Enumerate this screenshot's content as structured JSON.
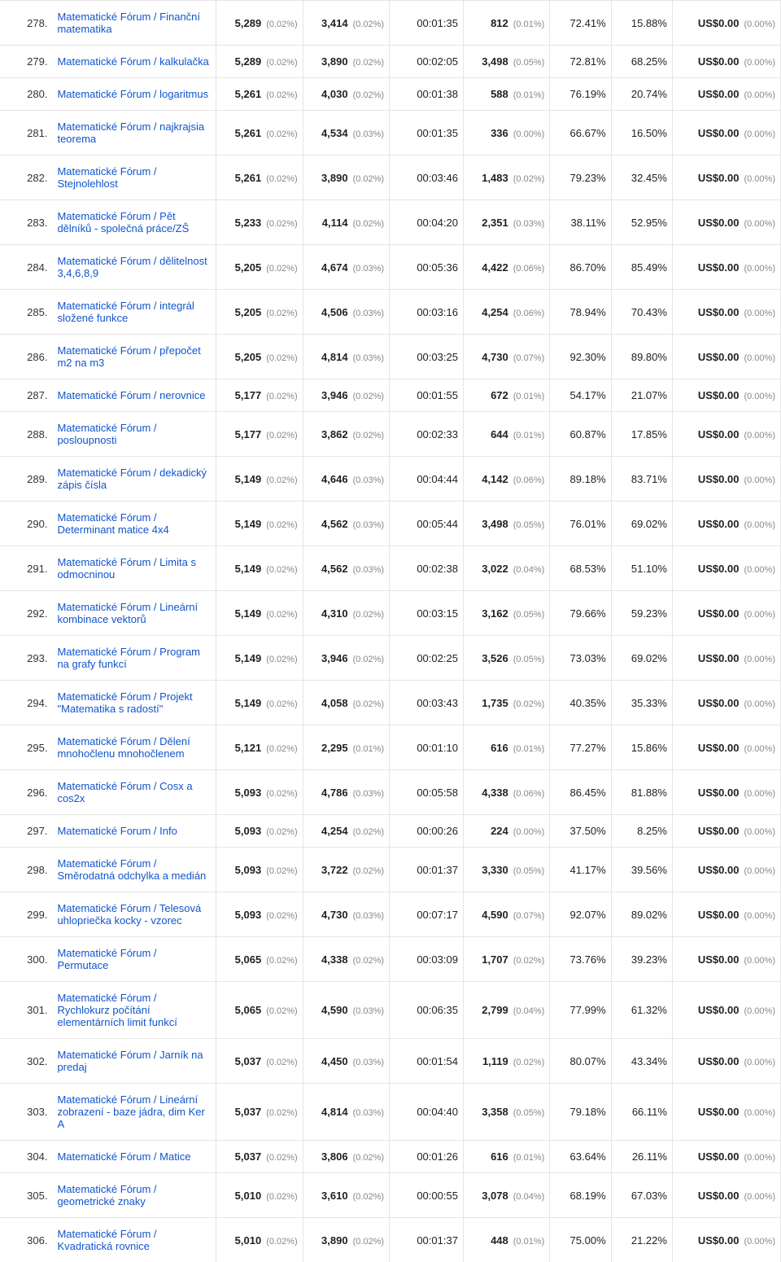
{
  "rows": [
    {
      "idx": "278.",
      "title": "Matematické Fórum / Finanční matematika",
      "c1": "5,289",
      "c1p": "(0.02%)",
      "c2": "3,414",
      "c2p": "(0.02%)",
      "time": "00:01:35",
      "c4": "812",
      "c4p": "(0.01%)",
      "p1": "72.41%",
      "p2": "15.88%",
      "rev": "US$0.00",
      "revp": "(0.00%)"
    },
    {
      "idx": "279.",
      "title": "Matematické Fórum / kalkulačka",
      "c1": "5,289",
      "c1p": "(0.02%)",
      "c2": "3,890",
      "c2p": "(0.02%)",
      "time": "00:02:05",
      "c4": "3,498",
      "c4p": "(0.05%)",
      "p1": "72.81%",
      "p2": "68.25%",
      "rev": "US$0.00",
      "revp": "(0.00%)"
    },
    {
      "idx": "280.",
      "title": "Matematické Fórum / logaritmus",
      "c1": "5,261",
      "c1p": "(0.02%)",
      "c2": "4,030",
      "c2p": "(0.02%)",
      "time": "00:01:38",
      "c4": "588",
      "c4p": "(0.01%)",
      "p1": "76.19%",
      "p2": "20.74%",
      "rev": "US$0.00",
      "revp": "(0.00%)"
    },
    {
      "idx": "281.",
      "title": "Matematické Fórum / najkrajsia teorema",
      "c1": "5,261",
      "c1p": "(0.02%)",
      "c2": "4,534",
      "c2p": "(0.03%)",
      "time": "00:01:35",
      "c4": "336",
      "c4p": "(0.00%)",
      "p1": "66.67%",
      "p2": "16.50%",
      "rev": "US$0.00",
      "revp": "(0.00%)"
    },
    {
      "idx": "282.",
      "title": "Matematické Fórum / Stejnolehlost",
      "c1": "5,261",
      "c1p": "(0.02%)",
      "c2": "3,890",
      "c2p": "(0.02%)",
      "time": "00:03:46",
      "c4": "1,483",
      "c4p": "(0.02%)",
      "p1": "79.23%",
      "p2": "32.45%",
      "rev": "US$0.00",
      "revp": "(0.00%)"
    },
    {
      "idx": "283.",
      "title": "Matematické Fórum / Pět dělníků - společná práce/ZŠ",
      "c1": "5,233",
      "c1p": "(0.02%)",
      "c2": "4,114",
      "c2p": "(0.02%)",
      "time": "00:04:20",
      "c4": "2,351",
      "c4p": "(0.03%)",
      "p1": "38.11%",
      "p2": "52.95%",
      "rev": "US$0.00",
      "revp": "(0.00%)"
    },
    {
      "idx": "284.",
      "title": "Matematické Fórum / dělitelnost 3,4,6,8,9",
      "c1": "5,205",
      "c1p": "(0.02%)",
      "c2": "4,674",
      "c2p": "(0.03%)",
      "time": "00:05:36",
      "c4": "4,422",
      "c4p": "(0.06%)",
      "p1": "86.70%",
      "p2": "85.49%",
      "rev": "US$0.00",
      "revp": "(0.00%)"
    },
    {
      "idx": "285.",
      "title": "Matematické Fórum / integrál složené funkce",
      "c1": "5,205",
      "c1p": "(0.02%)",
      "c2": "4,506",
      "c2p": "(0.03%)",
      "time": "00:03:16",
      "c4": "4,254",
      "c4p": "(0.06%)",
      "p1": "78.94%",
      "p2": "70.43%",
      "rev": "US$0.00",
      "revp": "(0.00%)"
    },
    {
      "idx": "286.",
      "title": "Matematické Fórum / přepočet m2 na m3",
      "c1": "5,205",
      "c1p": "(0.02%)",
      "c2": "4,814",
      "c2p": "(0.03%)",
      "time": "00:03:25",
      "c4": "4,730",
      "c4p": "(0.07%)",
      "p1": "92.30%",
      "p2": "89.80%",
      "rev": "US$0.00",
      "revp": "(0.00%)"
    },
    {
      "idx": "287.",
      "title": "Matematické Fórum / nerovnice",
      "c1": "5,177",
      "c1p": "(0.02%)",
      "c2": "3,946",
      "c2p": "(0.02%)",
      "time": "00:01:55",
      "c4": "672",
      "c4p": "(0.01%)",
      "p1": "54.17%",
      "p2": "21.07%",
      "rev": "US$0.00",
      "revp": "(0.00%)"
    },
    {
      "idx": "288.",
      "title": "Matematické Fórum / posloupnosti",
      "c1": "5,177",
      "c1p": "(0.02%)",
      "c2": "3,862",
      "c2p": "(0.02%)",
      "time": "00:02:33",
      "c4": "644",
      "c4p": "(0.01%)",
      "p1": "60.87%",
      "p2": "17.85%",
      "rev": "US$0.00",
      "revp": "(0.00%)"
    },
    {
      "idx": "289.",
      "title": "Matematické Fórum / dekadický zápis čísla",
      "c1": "5,149",
      "c1p": "(0.02%)",
      "c2": "4,646",
      "c2p": "(0.03%)",
      "time": "00:04:44",
      "c4": "4,142",
      "c4p": "(0.06%)",
      "p1": "89.18%",
      "p2": "83.71%",
      "rev": "US$0.00",
      "revp": "(0.00%)"
    },
    {
      "idx": "290.",
      "title": "Matematické Fórum / Determinant matice 4x4",
      "c1": "5,149",
      "c1p": "(0.02%)",
      "c2": "4,562",
      "c2p": "(0.03%)",
      "time": "00:05:44",
      "c4": "3,498",
      "c4p": "(0.05%)",
      "p1": "76.01%",
      "p2": "69.02%",
      "rev": "US$0.00",
      "revp": "(0.00%)"
    },
    {
      "idx": "291.",
      "title": "Matematické Fórum / Limita s odmocninou",
      "c1": "5,149",
      "c1p": "(0.02%)",
      "c2": "4,562",
      "c2p": "(0.03%)",
      "time": "00:02:38",
      "c4": "3,022",
      "c4p": "(0.04%)",
      "p1": "68.53%",
      "p2": "51.10%",
      "rev": "US$0.00",
      "revp": "(0.00%)"
    },
    {
      "idx": "292.",
      "title": "Matematické Fórum / Lineární kombinace vektorů",
      "c1": "5,149",
      "c1p": "(0.02%)",
      "c2": "4,310",
      "c2p": "(0.02%)",
      "time": "00:03:15",
      "c4": "3,162",
      "c4p": "(0.05%)",
      "p1": "79.66%",
      "p2": "59.23%",
      "rev": "US$0.00",
      "revp": "(0.00%)"
    },
    {
      "idx": "293.",
      "title": "Matematické Fórum / Program na grafy funkcí",
      "c1": "5,149",
      "c1p": "(0.02%)",
      "c2": "3,946",
      "c2p": "(0.02%)",
      "time": "00:02:25",
      "c4": "3,526",
      "c4p": "(0.05%)",
      "p1": "73.03%",
      "p2": "69.02%",
      "rev": "US$0.00",
      "revp": "(0.00%)"
    },
    {
      "idx": "294.",
      "title": "Matematické Fórum / Projekt \"Matematika s radostí\"",
      "c1": "5,149",
      "c1p": "(0.02%)",
      "c2": "4,058",
      "c2p": "(0.02%)",
      "time": "00:03:43",
      "c4": "1,735",
      "c4p": "(0.02%)",
      "p1": "40.35%",
      "p2": "35.33%",
      "rev": "US$0.00",
      "revp": "(0.00%)"
    },
    {
      "idx": "295.",
      "title": "Matematické Fórum / Dělení mnohočlenu mnohočlenem",
      "c1": "5,121",
      "c1p": "(0.02%)",
      "c2": "2,295",
      "c2p": "(0.01%)",
      "time": "00:01:10",
      "c4": "616",
      "c4p": "(0.01%)",
      "p1": "77.27%",
      "p2": "15.86%",
      "rev": "US$0.00",
      "revp": "(0.00%)"
    },
    {
      "idx": "296.",
      "title": "Matematické Fórum / Cosx a cos2x",
      "c1": "5,093",
      "c1p": "(0.02%)",
      "c2": "4,786",
      "c2p": "(0.03%)",
      "time": "00:05:58",
      "c4": "4,338",
      "c4p": "(0.06%)",
      "p1": "86.45%",
      "p2": "81.88%",
      "rev": "US$0.00",
      "revp": "(0.00%)"
    },
    {
      "idx": "297.",
      "title": "Matematické Forum / Info",
      "c1": "5,093",
      "c1p": "(0.02%)",
      "c2": "4,254",
      "c2p": "(0.02%)",
      "time": "00:00:26",
      "c4": "224",
      "c4p": "(0.00%)",
      "p1": "37.50%",
      "p2": "8.25%",
      "rev": "US$0.00",
      "revp": "(0.00%)"
    },
    {
      "idx": "298.",
      "title": "Matematické Fórum / Směrodatná odchylka a medián",
      "c1": "5,093",
      "c1p": "(0.02%)",
      "c2": "3,722",
      "c2p": "(0.02%)",
      "time": "00:01:37",
      "c4": "3,330",
      "c4p": "(0.05%)",
      "p1": "41.17%",
      "p2": "39.56%",
      "rev": "US$0.00",
      "revp": "(0.00%)"
    },
    {
      "idx": "299.",
      "title": "Matematické Fórum / Telesová uhlopriečka kocky - vzorec",
      "c1": "5,093",
      "c1p": "(0.02%)",
      "c2": "4,730",
      "c2p": "(0.03%)",
      "time": "00:07:17",
      "c4": "4,590",
      "c4p": "(0.07%)",
      "p1": "92.07%",
      "p2": "89.02%",
      "rev": "US$0.00",
      "revp": "(0.00%)"
    },
    {
      "idx": "300.",
      "title": "Matematické Fórum / Permutace",
      "c1": "5,065",
      "c1p": "(0.02%)",
      "c2": "4,338",
      "c2p": "(0.02%)",
      "time": "00:03:09",
      "c4": "1,707",
      "c4p": "(0.02%)",
      "p1": "73.76%",
      "p2": "39.23%",
      "rev": "US$0.00",
      "revp": "(0.00%)"
    },
    {
      "idx": "301.",
      "title": "Matematické Fórum / Rychlokurz počítání elementárních limit funkcí",
      "c1": "5,065",
      "c1p": "(0.02%)",
      "c2": "4,590",
      "c2p": "(0.03%)",
      "time": "00:06:35",
      "c4": "2,799",
      "c4p": "(0.04%)",
      "p1": "77.99%",
      "p2": "61.32%",
      "rev": "US$0.00",
      "revp": "(0.00%)"
    },
    {
      "idx": "302.",
      "title": "Matematické Fórum / Jarník na predaj",
      "c1": "5,037",
      "c1p": "(0.02%)",
      "c2": "4,450",
      "c2p": "(0.03%)",
      "time": "00:01:54",
      "c4": "1,119",
      "c4p": "(0.02%)",
      "p1": "80.07%",
      "p2": "43.34%",
      "rev": "US$0.00",
      "revp": "(0.00%)"
    },
    {
      "idx": "303.",
      "title": "Matematické Fórum / Lineární zobrazení - baze jádra, dim Ker A",
      "c1": "5,037",
      "c1p": "(0.02%)",
      "c2": "4,814",
      "c2p": "(0.03%)",
      "time": "00:04:40",
      "c4": "3,358",
      "c4p": "(0.05%)",
      "p1": "79.18%",
      "p2": "66.11%",
      "rev": "US$0.00",
      "revp": "(0.00%)"
    },
    {
      "idx": "304.",
      "title": "Matematické Fórum / Matice",
      "c1": "5,037",
      "c1p": "(0.02%)",
      "c2": "3,806",
      "c2p": "(0.02%)",
      "time": "00:01:26",
      "c4": "616",
      "c4p": "(0.01%)",
      "p1": "63.64%",
      "p2": "26.11%",
      "rev": "US$0.00",
      "revp": "(0.00%)"
    },
    {
      "idx": "305.",
      "title": "Matematické Fórum / geometrické znaky",
      "c1": "5,010",
      "c1p": "(0.02%)",
      "c2": "3,610",
      "c2p": "(0.02%)",
      "time": "00:00:55",
      "c4": "3,078",
      "c4p": "(0.04%)",
      "p1": "68.19%",
      "p2": "67.03%",
      "rev": "US$0.00",
      "revp": "(0.00%)"
    },
    {
      "idx": "306.",
      "title": "Matematické Fórum / Kvadratická rovnice",
      "c1": "5,010",
      "c1p": "(0.02%)",
      "c2": "3,890",
      "c2p": "(0.02%)",
      "time": "00:01:37",
      "c4": "448",
      "c4p": "(0.01%)",
      "p1": "75.00%",
      "p2": "21.22%",
      "rev": "US$0.00",
      "revp": "(0.00%)"
    }
  ],
  "colors": {
    "link": "#15c",
    "border": "#e5e5e5",
    "muted": "#888",
    "text": "#212121"
  }
}
